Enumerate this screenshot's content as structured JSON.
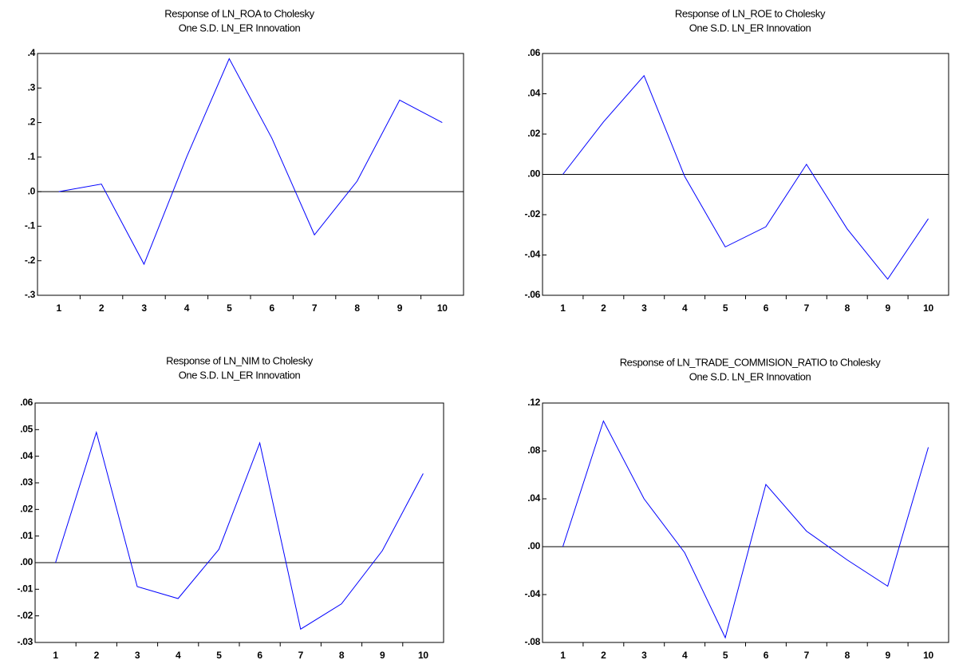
{
  "chart_data": [
    {
      "type": "line",
      "title": "Response of LN_ROA to Cholesky",
      "subtitle": "One S.D. LN_ER Innovation",
      "categories": [
        "1",
        "2",
        "3",
        "4",
        "5",
        "6",
        "7",
        "8",
        "9",
        "10"
      ],
      "series": [
        {
          "color": "#0000ff",
          "values": [
            0.0,
            0.022,
            -0.21,
            0.1,
            0.385,
            0.155,
            -0.125,
            0.03,
            0.265,
            0.2
          ]
        }
      ],
      "ylim": [
        -0.3,
        0.4
      ],
      "yticks": [
        {
          "value": -0.3,
          "label": "-.3"
        },
        {
          "value": -0.2,
          "label": "-.2"
        },
        {
          "value": -0.1,
          "label": "-.1"
        },
        {
          "value": 0,
          "label": ".0"
        },
        {
          "value": 0.1,
          "label": ".1"
        },
        {
          "value": 0.2,
          "label": ".2"
        },
        {
          "value": 0.3,
          "label": ".3"
        },
        {
          "value": 0.4,
          "label": ".4"
        }
      ],
      "zero_line": true
    },
    {
      "type": "line",
      "title": "Response of LN_ROE to Cholesky",
      "subtitle": "One S.D. LN_ER Innovation",
      "categories": [
        "1",
        "2",
        "3",
        "4",
        "5",
        "6",
        "7",
        "8",
        "9",
        "10"
      ],
      "series": [
        {
          "color": "#0000ff",
          "values": [
            0.0,
            0.026,
            0.049,
            -0.001,
            -0.036,
            -0.026,
            0.005,
            -0.027,
            -0.052,
            -0.022
          ]
        }
      ],
      "ylim": [
        -0.06,
        0.06
      ],
      "yticks": [
        {
          "value": -0.06,
          "label": "-.06"
        },
        {
          "value": -0.04,
          "label": "-.04"
        },
        {
          "value": -0.02,
          "label": "-.02"
        },
        {
          "value": 0,
          "label": ".00"
        },
        {
          "value": 0.02,
          "label": ".02"
        },
        {
          "value": 0.04,
          "label": ".04"
        },
        {
          "value": 0.06,
          "label": ".06"
        }
      ],
      "zero_line": true
    },
    {
      "type": "line",
      "title": "Response of LN_NIM to Cholesky",
      "subtitle": "One S.D. LN_ER Innovation",
      "categories": [
        "1",
        "2",
        "3",
        "4",
        "5",
        "6",
        "7",
        "8",
        "9",
        "10"
      ],
      "series": [
        {
          "color": "#0000ff",
          "values": [
            0.0,
            0.049,
            -0.009,
            -0.0135,
            0.005,
            0.045,
            -0.025,
            -0.0155,
            0.0045,
            0.0335
          ]
        }
      ],
      "ylim": [
        -0.03,
        0.06
      ],
      "yticks": [
        {
          "value": -0.03,
          "label": "-.03"
        },
        {
          "value": -0.02,
          "label": "-.02"
        },
        {
          "value": -0.01,
          "label": "-.01"
        },
        {
          "value": 0,
          "label": ".00"
        },
        {
          "value": 0.01,
          "label": ".01"
        },
        {
          "value": 0.02,
          "label": ".02"
        },
        {
          "value": 0.03,
          "label": ".03"
        },
        {
          "value": 0.04,
          "label": ".04"
        },
        {
          "value": 0.05,
          "label": ".05"
        },
        {
          "value": 0.06,
          "label": ".06"
        }
      ],
      "zero_line": true
    },
    {
      "type": "line",
      "title": "Response of LN_TRADE_COMMISION_RATIO to Cholesky",
      "subtitle": "One S.D. LN_ER Innovation",
      "categories": [
        "1",
        "2",
        "3",
        "4",
        "5",
        "6",
        "7",
        "8",
        "9",
        "10"
      ],
      "series": [
        {
          "color": "#0000ff",
          "values": [
            0.0,
            0.105,
            0.04,
            -0.005,
            -0.076,
            0.052,
            0.013,
            -0.011,
            -0.033,
            0.083
          ]
        }
      ],
      "ylim": [
        -0.08,
        0.12
      ],
      "yticks": [
        {
          "value": -0.08,
          "label": "-.08"
        },
        {
          "value": -0.04,
          "label": "-.04"
        },
        {
          "value": 0,
          "label": ".00"
        },
        {
          "value": 0.04,
          "label": ".04"
        },
        {
          "value": 0.08,
          "label": ".08"
        },
        {
          "value": 0.12,
          "label": ".12"
        }
      ],
      "zero_line": true
    }
  ]
}
